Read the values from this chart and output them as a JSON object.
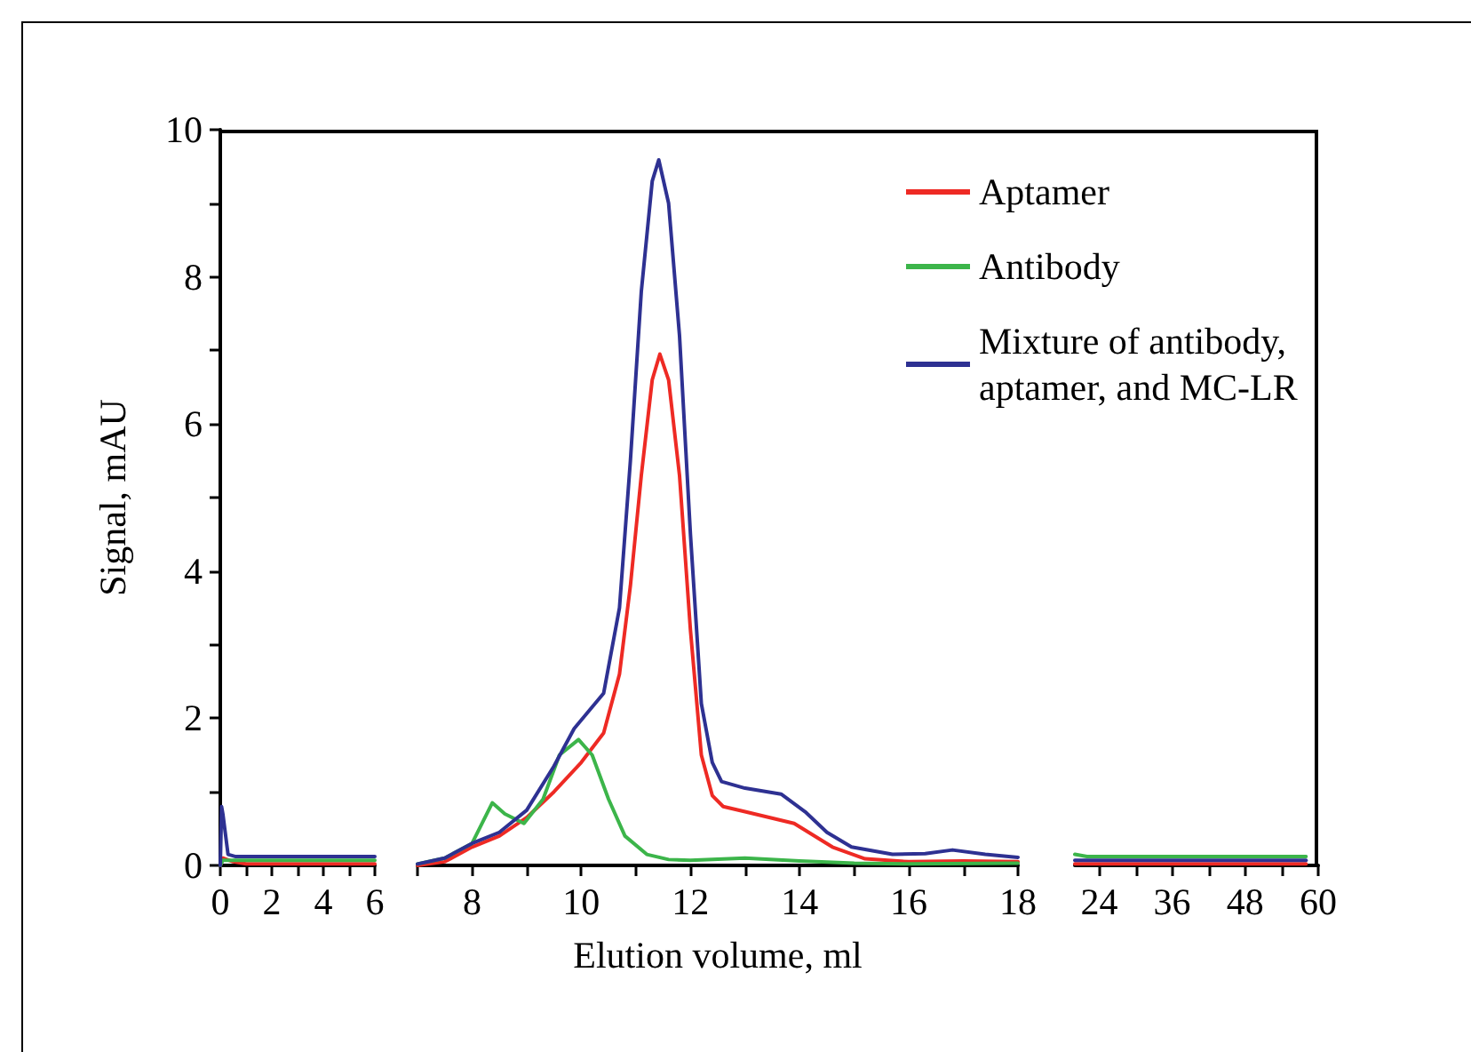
{
  "chart_data": [
    {
      "type": "line",
      "ylabel": "Signal, mAU",
      "xlim": [
        0,
        6
      ],
      "xticks": [
        0,
        {
          "value": 1,
          "label": null
        },
        2,
        {
          "value": 3,
          "label": null
        },
        4,
        {
          "value": 5,
          "label": null
        },
        6
      ],
      "ylim": [
        0,
        10
      ],
      "yticks": [
        0,
        {
          "value": 1,
          "label": null
        },
        2,
        {
          "value": 3,
          "label": null
        },
        4,
        {
          "value": 5,
          "label": null
        },
        6,
        {
          "value": 7,
          "label": null
        },
        8,
        {
          "value": 9,
          "label": null
        },
        10
      ],
      "grid": false,
      "legend": false,
      "marker": "none",
      "line_style": "solid",
      "series": [
        {
          "color": "#ee2a24",
          "x": [
            0,
            0.1,
            0.5,
            1,
            2,
            3,
            4,
            5,
            6
          ],
          "values": [
            0,
            0.1,
            0.05,
            0.02,
            0.02,
            0.02,
            0.02,
            0.02,
            0.02
          ]
        },
        {
          "color": "#3cb54a",
          "x": [
            0,
            0.1,
            0.5,
            1,
            2,
            3,
            4,
            5,
            6
          ],
          "values": [
            0,
            0.07,
            0.07,
            0.07,
            0.07,
            0.07,
            0.07,
            0.07,
            0.07
          ]
        },
        {
          "color": "#2e3192",
          "x": [
            0,
            0.05,
            0.1,
            0.3,
            0.6,
            1,
            2,
            3,
            4,
            5,
            6
          ],
          "values": [
            0,
            0.8,
            0.7,
            0.15,
            0.12,
            0.12,
            0.12,
            0.12,
            0.12,
            0.12,
            0.12
          ]
        }
      ]
    },
    {
      "type": "line",
      "xlabel": "Elution volume, ml",
      "xlim": [
        7,
        18
      ],
      "xticks": [
        {
          "value": 7,
          "label": null
        },
        8,
        {
          "value": 9,
          "label": null
        },
        10,
        {
          "value": 11,
          "label": null
        },
        12,
        {
          "value": 13,
          "label": null
        },
        14,
        {
          "value": 15,
          "label": null
        },
        16,
        {
          "value": 17,
          "label": null
        },
        18
      ],
      "ylim": [
        0,
        10
      ],
      "tick_labels": "x",
      "grid": false,
      "legend": "top right",
      "marker": "none",
      "line_style": "solid",
      "series": [
        {
          "name": "Aptamer",
          "color": "#ee2a24",
          "x": [
            7,
            7.5,
            8,
            8.5,
            9,
            9.5,
            10,
            10.41,
            10.7,
            10.9,
            11.1,
            11.3,
            11.44,
            11.6,
            11.8,
            12,
            12.2,
            12.4,
            12.6,
            13,
            13.9,
            14.6,
            15.2,
            16,
            17,
            18
          ],
          "values": [
            0,
            0.05,
            0.25,
            0.4,
            0.65,
            1,
            1.4,
            1.8,
            2.6,
            3.8,
            5.3,
            6.6,
            6.95,
            6.6,
            5.3,
            3.2,
            1.5,
            0.95,
            0.8,
            0.73,
            0.57,
            0.25,
            0.09,
            0.05,
            0.06,
            0.05
          ]
        },
        {
          "name": "Antibody",
          "color": "#3cb54a",
          "x": [
            7,
            7.5,
            8,
            8.37,
            8.6,
            8.95,
            9.3,
            9.6,
            9.95,
            10.2,
            10.5,
            10.8,
            11.2,
            11.6,
            12,
            13,
            14,
            15,
            16,
            18
          ],
          "values": [
            0.02,
            0.1,
            0.3,
            0.85,
            0.7,
            0.57,
            0.9,
            1.5,
            1.71,
            1.5,
            0.9,
            0.4,
            0.15,
            0.08,
            0.07,
            0.1,
            0.06,
            0.03,
            0.02,
            0.03
          ]
        },
        {
          "name": "Mixture of antibody, aptamer, and MC-LR",
          "color": "#2e3192",
          "x": [
            7,
            7.5,
            8,
            8.5,
            9,
            9.5,
            9.87,
            10.41,
            10.7,
            10.9,
            11.1,
            11.3,
            11.42,
            11.6,
            11.8,
            12,
            12.2,
            12.4,
            12.57,
            13,
            13.66,
            14.1,
            14.5,
            14.95,
            15.7,
            16.3,
            16.8,
            17.4,
            18
          ],
          "values": [
            0.02,
            0.1,
            0.3,
            0.45,
            0.75,
            1.35,
            1.86,
            2.34,
            3.5,
            5.5,
            7.8,
            9.3,
            9.59,
            9,
            7.2,
            4.5,
            2.2,
            1.4,
            1.14,
            1.05,
            0.97,
            0.73,
            0.45,
            0.25,
            0.15,
            0.16,
            0.21,
            0.15,
            0.11
          ]
        }
      ]
    },
    {
      "type": "line",
      "xlim": [
        20,
        60
      ],
      "xticks": [
        24,
        {
          "value": 30,
          "label": null
        },
        36,
        {
          "value": 42,
          "label": null
        },
        48,
        {
          "value": 54,
          "label": null
        },
        60
      ],
      "ylim": [
        0,
        10
      ],
      "tick_labels": "x",
      "grid": false,
      "legend": false,
      "marker": "none",
      "line_style": "solid",
      "series": [
        {
          "color": "#ee2a24",
          "x": [
            20,
            30,
            40,
            50,
            58
          ],
          "values": [
            0.02,
            0.02,
            0.02,
            0.02,
            0.02
          ]
        },
        {
          "color": "#3cb54a",
          "x": [
            20,
            22,
            30,
            40,
            50,
            58
          ],
          "values": [
            0.15,
            0.12,
            0.12,
            0.12,
            0.12,
            0.12
          ]
        },
        {
          "color": "#2e3192",
          "x": [
            20,
            30,
            40,
            50,
            58
          ],
          "values": [
            0.07,
            0.07,
            0.07,
            0.07,
            0.07
          ]
        }
      ]
    }
  ]
}
